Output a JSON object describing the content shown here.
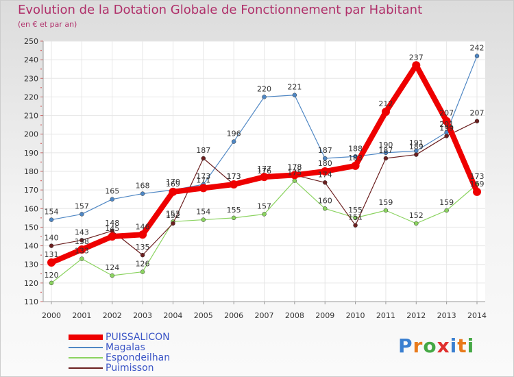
{
  "title": "Evolution de la Dotation Globale de Fonctionnement par Habitant",
  "subtitle": "(en € et par an)",
  "brand": "Proxiti",
  "chart_data": {
    "type": "line",
    "title": "Evolution de la Dotation Globale de Fonctionnement par Habitant",
    "subtitle": "(en € et par an)",
    "x": [
      2000,
      2001,
      2002,
      2003,
      2004,
      2005,
      2006,
      2007,
      2008,
      2009,
      2010,
      2011,
      2012,
      2013,
      2014
    ],
    "ylim": [
      110,
      250
    ],
    "yticks": [
      110,
      120,
      130,
      140,
      150,
      160,
      170,
      180,
      190,
      200,
      210,
      220,
      230,
      240,
      250
    ],
    "grid": true,
    "legend": "bottom-left",
    "series": [
      {
        "name": "PUISSALICON",
        "color": "#ee0000",
        "values": [
          131,
          138,
          145,
          146,
          169,
          171,
          173,
          177,
          178,
          180,
          183,
          212,
          237,
          207,
          169
        ]
      },
      {
        "name": "Magalas",
        "color": "#4f87c4",
        "values": [
          154,
          157,
          165,
          168,
          170,
          173,
          196,
          220,
          221,
          187,
          188,
          190,
          191,
          201,
          242
        ]
      },
      {
        "name": "Espondeilhan",
        "color": "#8bd360",
        "values": [
          120,
          133,
          124,
          126,
          153,
          154,
          155,
          157,
          175,
          160,
          155,
          159,
          152,
          159,
          173
        ]
      },
      {
        "name": "Puimisson",
        "color": "#6b1f1f",
        "values": [
          140,
          143,
          148,
          135,
          152,
          187,
          173,
          176,
          178,
          174,
          151,
          187,
          189,
          199,
          207
        ]
      }
    ],
    "point_labels": [
      [
        131,
        138,
        145,
        146,
        169,
        171,
        173,
        177,
        178,
        180,
        183,
        212,
        237,
        207,
        169
      ],
      [
        154,
        157,
        165,
        168,
        170,
        173,
        196,
        220,
        221,
        187,
        188,
        190,
        191,
        201,
        242
      ],
      [
        120,
        133,
        124,
        126,
        153,
        154,
        155,
        157,
        175,
        160,
        155,
        159,
        152,
        159,
        173
      ],
      [
        140,
        143,
        148,
        135,
        152,
        187,
        173,
        176,
        178,
        174,
        151,
        187,
        189,
        199,
        207
      ]
    ]
  }
}
